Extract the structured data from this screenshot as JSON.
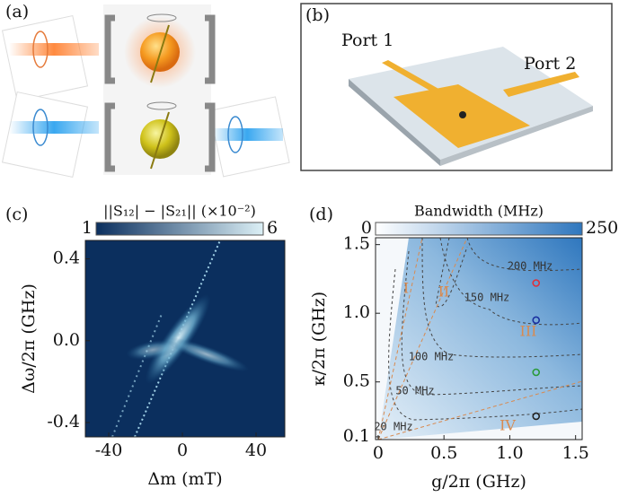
{
  "figure": {
    "panel_labels": [
      "(a)",
      "(b)",
      "(c)",
      "(d)"
    ],
    "ports": [
      "Port 1",
      "Port 2"
    ]
  },
  "chart_data": [
    {
      "type": "heatmap",
      "xlabel": "Δm (mT)",
      "ylabel": "Δω/2π (GHz)",
      "xlim": [
        -52.7,
        55.6
      ],
      "xticks": [
        -40,
        0,
        40
      ],
      "ylim": [
        -0.47,
        0.49
      ],
      "yticks": [
        0.4,
        {
          "value": 0,
          "label": "0.0"
        },
        -0.4
      ],
      "colorbar": {
        "label": "||S₁₂| − |S₂₁|| (×10⁻²)",
        "range": [
          1,
          6
        ],
        "ticks": [
          1,
          6
        ],
        "colormap": [
          "#0b2f5e",
          "#dcf0f6"
        ]
      }
    },
    {
      "type": "contour",
      "xlabel": "g/2π (GHz)",
      "ylabel": "κ/2π (GHz)",
      "xlim": [
        -0.02,
        1.55
      ],
      "xticks": [
        0,
        0.5,
        {
          "value": 1,
          "label": "1.0"
        },
        1.5
      ],
      "ylim": [
        0.08,
        1.55
      ],
      "yticks": [
        0.1,
        0.5,
        {
          "value": 1,
          "label": "1.0"
        },
        1.5
      ],
      "colorbar": {
        "label": "Bandwidth (MHz)",
        "range": [
          0,
          250
        ],
        "ticks": [
          0,
          250
        ],
        "colormap": [
          "#ffffff",
          "#2f77be"
        ]
      },
      "contour_labels": [
        "200 MHz",
        "150 MHz",
        "100 MHz",
        "50 MHz",
        "20 MHz"
      ],
      "regions": [
        "I",
        "II",
        "III",
        "IV"
      ],
      "points": {
        "x": [
          1.2,
          1.2,
          1.2,
          1.2
        ],
        "y": [
          1.22,
          0.95,
          0.57,
          0.25
        ],
        "colors": [
          "#e0303a",
          "#1a2fa0",
          "#2a9a3a",
          "#222222"
        ]
      }
    }
  ]
}
